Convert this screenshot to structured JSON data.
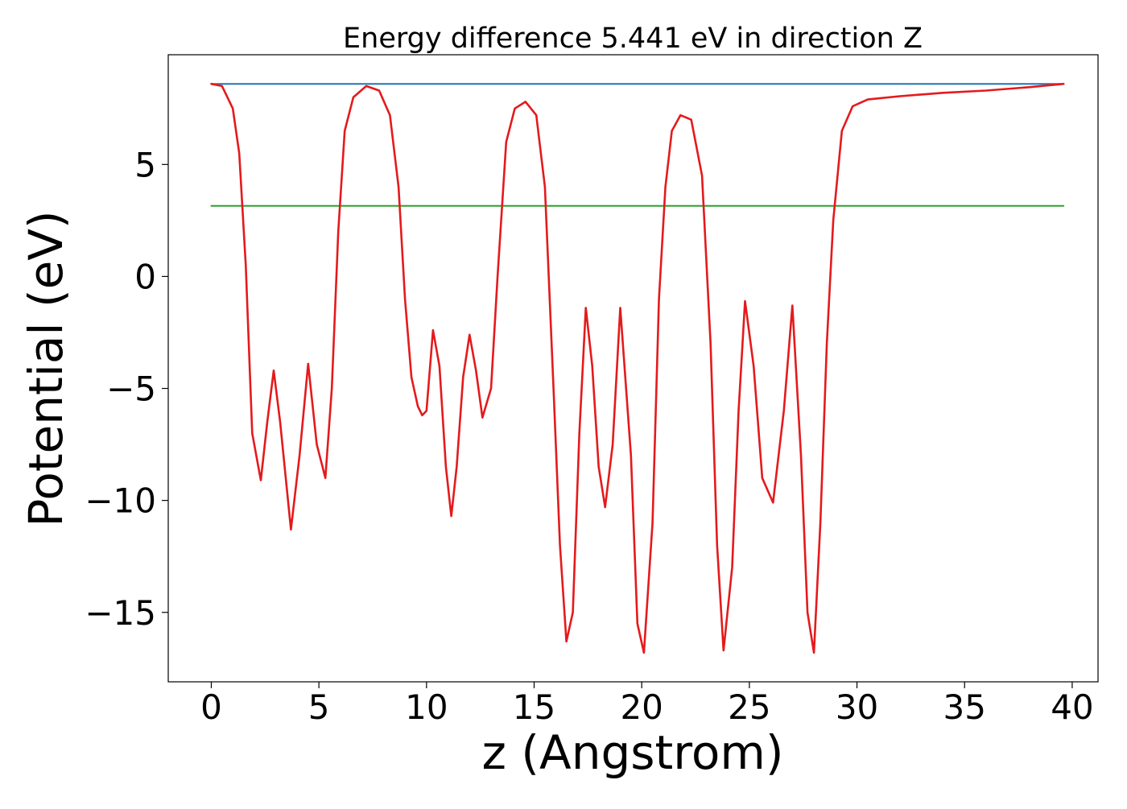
{
  "chart_data": {
    "type": "line",
    "title": "Energy difference 5.441 eV in direction Z",
    "xlabel": "z (Angstrom)",
    "ylabel": "Potential (eV)",
    "xlim": [
      -2.0,
      41.2
    ],
    "ylim": [
      -18.1,
      9.9
    ],
    "x_ticks": [
      0,
      5,
      10,
      15,
      20,
      25,
      30,
      35,
      40
    ],
    "y_ticks": [
      -15,
      -10,
      -5,
      0,
      5
    ],
    "x_tick_labels": [
      "0",
      "5",
      "10",
      "15",
      "20",
      "25",
      "30",
      "35",
      "40"
    ],
    "y_tick_labels": [
      "−15",
      "−10",
      "−5",
      "0",
      "5"
    ],
    "grid": false,
    "series": [
      {
        "color": "#1f77b4",
        "x": [
          0,
          39.6
        ],
        "y": [
          8.6,
          8.6
        ]
      },
      {
        "color": "#2ca02c",
        "x": [
          0,
          39.6
        ],
        "y": [
          3.15,
          3.15
        ]
      },
      {
        "color": "#e41a1c",
        "x": [
          0.0,
          0.5,
          1.0,
          1.3,
          1.6,
          1.9,
          2.3,
          2.6,
          2.9,
          3.2,
          3.7,
          4.1,
          4.5,
          4.9,
          5.3,
          5.6,
          5.9,
          6.2,
          6.6,
          7.2,
          7.8,
          8.3,
          8.7,
          9.0,
          9.3,
          9.6,
          9.8,
          10.0,
          10.3,
          10.6,
          10.9,
          11.15,
          11.4,
          11.7,
          12.0,
          12.3,
          12.6,
          13.0,
          13.3,
          13.7,
          14.1,
          14.6,
          15.1,
          15.5,
          15.9,
          16.2,
          16.5,
          16.8,
          17.1,
          17.4,
          17.7,
          18.0,
          18.3,
          18.65,
          19.0,
          19.5,
          19.8,
          20.1,
          20.5,
          20.8,
          21.1,
          21.4,
          21.8,
          22.3,
          22.8,
          23.2,
          23.5,
          23.8,
          24.2,
          24.5,
          24.8,
          25.2,
          25.6,
          26.1,
          26.6,
          27.0,
          27.4,
          27.7,
          28.0,
          28.3,
          28.6,
          28.9,
          29.3,
          29.8,
          30.5,
          32.0,
          34.0,
          36.0,
          38.0,
          39.6
        ],
        "y": [
          8.6,
          8.5,
          7.5,
          5.5,
          0.5,
          -7.0,
          -9.1,
          -6.5,
          -4.2,
          -6.5,
          -11.3,
          -8.0,
          -3.9,
          -7.5,
          -9.0,
          -5.0,
          2.0,
          6.5,
          8.0,
          8.5,
          8.3,
          7.2,
          4.0,
          -1.0,
          -4.5,
          -5.8,
          -6.2,
          -6.0,
          -2.4,
          -4.0,
          -8.5,
          -10.7,
          -8.5,
          -4.5,
          -2.6,
          -4.2,
          -6.3,
          -5.0,
          0.0,
          6.0,
          7.5,
          7.8,
          7.2,
          4.0,
          -5.0,
          -12.0,
          -16.3,
          -15.0,
          -7.0,
          -1.4,
          -4.0,
          -8.5,
          -10.3,
          -7.5,
          -1.4,
          -8.0,
          -15.5,
          -16.8,
          -11.0,
          -1.0,
          4.0,
          6.5,
          7.2,
          7.0,
          4.5,
          -3.0,
          -12.0,
          -16.7,
          -13.0,
          -6.0,
          -1.1,
          -4.0,
          -9.0,
          -10.1,
          -6.0,
          -1.3,
          -8.0,
          -15.0,
          -16.8,
          -11.0,
          -3.0,
          2.5,
          6.5,
          7.6,
          7.9,
          8.05,
          8.2,
          8.3,
          8.45,
          8.6
        ]
      }
    ]
  }
}
